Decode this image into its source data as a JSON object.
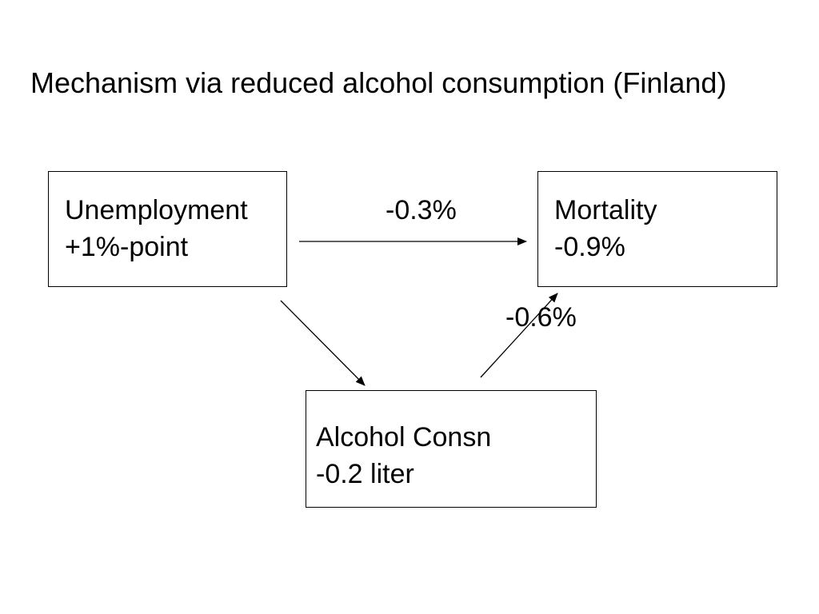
{
  "title": "Mechanism via reduced alcohol consumption (Finland)",
  "nodes": {
    "unemployment": {
      "label": "Unemployment",
      "value": "+1%-point"
    },
    "mortality": {
      "label": "Mortality",
      "value": "-0.9%"
    },
    "alcohol": {
      "label": "Alcohol Consn",
      "value": "-0.2 liter"
    }
  },
  "edges": {
    "unemployment_to_mortality": {
      "from": "unemployment",
      "to": "mortality",
      "label": "-0.3%"
    },
    "unemployment_to_alcohol": {
      "from": "unemployment",
      "to": "alcohol",
      "label": ""
    },
    "alcohol_to_mortality": {
      "from": "alcohol",
      "to": "mortality",
      "label": "-0.6%"
    }
  },
  "colors": {
    "line": "#000000",
    "background": "#ffffff",
    "text": "#000000"
  }
}
